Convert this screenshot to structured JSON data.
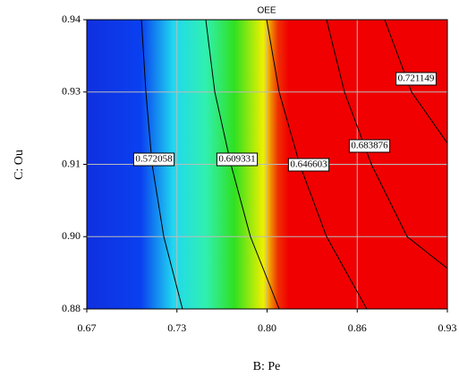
{
  "chart_data": {
    "type": "contour",
    "title": "OEE",
    "x_label": "B: Pe",
    "y_label": "C: Ou",
    "xlim": [
      0.67,
      0.93
    ],
    "ylim": [
      0.88,
      0.94
    ],
    "xticks": [
      0.67,
      {
        "value": 0.735,
        "label": "0.73"
      },
      {
        "value": 0.8,
        "label": "0.80"
      },
      {
        "value": 0.865,
        "label": "0.86"
      },
      0.93
    ],
    "yticks": [
      0.88,
      {
        "value": 0.895,
        "label": "0.90"
      },
      0.91,
      {
        "value": 0.925,
        "label": "0.93"
      },
      0.94
    ],
    "grid": true,
    "contours": [
      {
        "level": 0.572058,
        "x": [
          0.7094,
          0.7126,
          0.7171,
          0.7255,
          0.739
        ],
        "y": [
          0.94,
          0.925,
          0.91,
          0.895,
          0.88
        ]
      },
      {
        "level": 0.609331,
        "x": [
          0.7558,
          0.7623,
          0.7739,
          0.788,
          0.8087
        ],
        "y": [
          0.94,
          0.925,
          0.91,
          0.895,
          0.88
        ]
      },
      {
        "level": 0.646603,
        "x": [
          0.7997,
          0.8087,
          0.8235,
          0.8429,
          0.8719
        ],
        "y": [
          0.94,
          0.925,
          0.91,
          0.895,
          0.88
        ]
      },
      {
        "level": 0.683876,
        "x": [
          0.8429,
          0.8558,
          0.8752,
          0.901,
          0.93
        ],
        "y": [
          0.94,
          0.925,
          0.91,
          0.895,
          0.8884
        ]
      },
      {
        "level": 0.721149,
        "x": [
          0.8848,
          0.9042,
          0.93
        ],
        "y": [
          0.94,
          0.925,
          0.9144
        ]
      }
    ]
  }
}
